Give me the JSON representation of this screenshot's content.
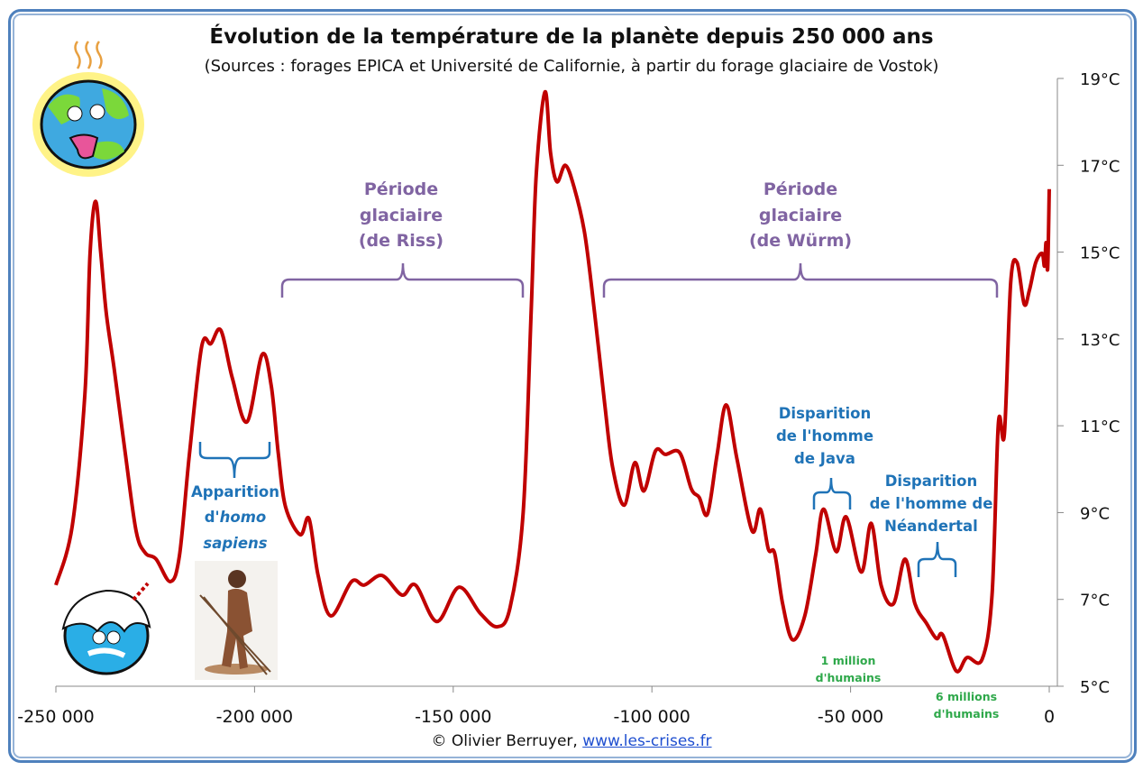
{
  "title": "Évolution de la température de la planète depuis 250 000 ans",
  "subtitle": "(Sources : forages EPICA et Université de Californie, à partir du forage glaciaire de Vostok)",
  "footer": {
    "credit": "© Olivier Berruyer,",
    "link": "www.les-crises.fr"
  },
  "colors": {
    "line": "#C00000",
    "glacial": "#8064A2",
    "human": "#1F73B7",
    "population": "#2EA84A",
    "frame": "#4F81BD"
  },
  "icons": [
    "hot-earth-icon",
    "frozen-earth-icon",
    "homo-sapiens-image"
  ],
  "annotations": {
    "riss": [
      "Période",
      "glaciaire",
      "(de Riss)"
    ],
    "wurm": [
      "Période",
      "glaciaire",
      "(de Würm)"
    ],
    "sapiens": {
      "line1": "Apparition",
      "line2_prefix": "d'",
      "line2_italic": "homo",
      "line3_italic": "sapiens"
    },
    "java": [
      "Disparition",
      "de l'homme",
      "de Java"
    ],
    "neandertal": [
      "Disparition",
      "de l'homme de",
      "Néandertal"
    ],
    "pop1": [
      "1 million",
      "d'humains"
    ],
    "pop6": [
      "6 millions",
      "d'humains"
    ]
  },
  "chart_data": {
    "type": "line",
    "title": "Évolution de la température de la planète depuis 250 000 ans",
    "xlabel": "",
    "ylabel": "",
    "xlim": [
      -250000,
      0
    ],
    "ylim": [
      5,
      19
    ],
    "x_ticks": [
      -250000,
      -200000,
      -150000,
      -100000,
      -50000,
      0
    ],
    "x_tick_labels": [
      "-250 000",
      "-200 000",
      "-150 000",
      "-100 000",
      "-50 000",
      "0"
    ],
    "y_ticks": [
      19,
      17,
      15,
      13,
      11,
      9,
      7,
      5
    ],
    "y_tick_labels": [
      "19°C",
      "17°C",
      "15°C",
      "13°C",
      "11°C",
      "9°C",
      "7°C",
      "5°C"
    ],
    "y_axis_side": "right",
    "grid": false,
    "series": [
      {
        "x": [
          -250000,
          -245900,
          -242700,
          -241400,
          -240000,
          -238700,
          -237300,
          -235300,
          -232500,
          -229800,
          -227500,
          -224800,
          -221200,
          -218900,
          -216400,
          -213300,
          -211000,
          -208500,
          -205600,
          -201900,
          -198100,
          -195800,
          -194000,
          -192200,
          -188500,
          -186300,
          -184000,
          -180800,
          -175600,
          -172400,
          -167900,
          -162900,
          -159500,
          -154100,
          -148600,
          -143200,
          -138900,
          -135700,
          -132400,
          -130400,
          -129100,
          -126900,
          -125500,
          -123900,
          -121800,
          -119600,
          -116900,
          -114400,
          -111900,
          -109900,
          -107000,
          -104300,
          -102000,
          -99100,
          -96600,
          -93000,
          -90100,
          -88100,
          -86000,
          -83600,
          -81300,
          -78600,
          -74800,
          -72700,
          -70700,
          -69100,
          -67100,
          -64600,
          -61500,
          -58800,
          -56800,
          -53600,
          -51100,
          -47300,
          -44800,
          -42300,
          -39200,
          -36300,
          -33800,
          -30900,
          -28400,
          -26800,
          -23400,
          -20700,
          -16900,
          -14400,
          -12800,
          -11300,
          -9700,
          -8100,
          -6300,
          -5000,
          -3400,
          -1800,
          -1200,
          -800,
          -400,
          0
        ],
        "y": [
          7.33,
          8.68,
          11.73,
          14.97,
          16.17,
          14.97,
          13.58,
          12.29,
          10.34,
          8.57,
          8.07,
          7.93,
          7.41,
          8.01,
          10.34,
          12.83,
          12.89,
          13.2,
          12.1,
          11.09,
          12.64,
          11.92,
          10.34,
          9.13,
          8.49,
          8.86,
          7.55,
          6.62,
          7.41,
          7.33,
          7.55,
          7.1,
          7.33,
          6.49,
          7.28,
          6.68,
          6.37,
          6.81,
          9.0,
          13.6,
          16.8,
          18.69,
          17.28,
          16.62,
          17.0,
          16.5,
          15.42,
          13.58,
          11.52,
          10.05,
          9.17,
          10.15,
          9.5,
          10.42,
          10.34,
          10.38,
          9.55,
          9.35,
          8.97,
          10.33,
          11.48,
          10.24,
          8.58,
          9.08,
          8.16,
          8.06,
          6.9,
          6.07,
          6.63,
          8.02,
          9.08,
          8.1,
          8.9,
          7.63,
          8.75,
          7.32,
          6.9,
          7.93,
          6.9,
          6.45,
          6.1,
          6.18,
          5.35,
          5.66,
          5.62,
          7.1,
          11.06,
          10.8,
          14.3,
          14.76,
          13.8,
          14.12,
          14.76,
          14.97,
          14.68,
          15.22,
          14.62,
          16.45
        ]
      }
    ]
  }
}
